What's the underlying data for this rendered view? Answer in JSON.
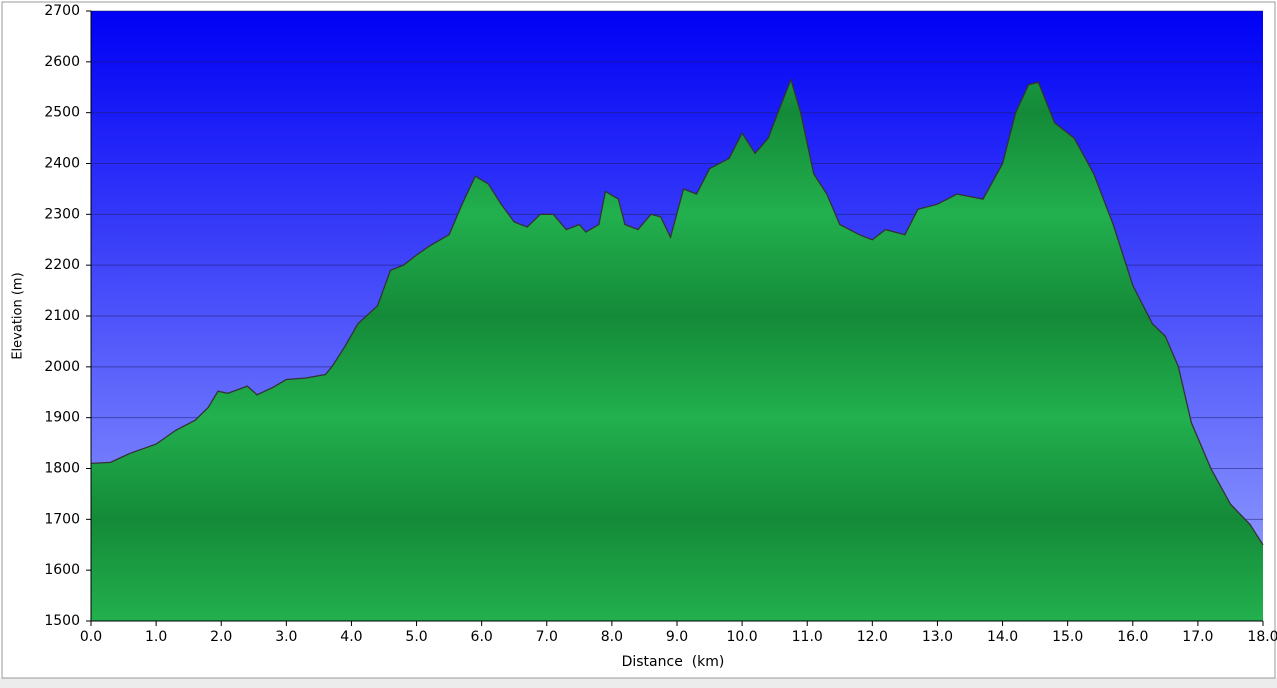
{
  "chart_data": {
    "type": "area",
    "x_label": "Distance  (km)",
    "y_label": "Elevation (m)",
    "x": [
      0.0,
      0.3,
      0.6,
      1.0,
      1.3,
      1.6,
      1.8,
      1.95,
      2.1,
      2.4,
      2.55,
      2.8,
      3.0,
      3.3,
      3.6,
      3.7,
      3.9,
      4.1,
      4.4,
      4.6,
      4.8,
      5.0,
      5.2,
      5.5,
      5.7,
      5.9,
      6.1,
      6.3,
      6.5,
      6.7,
      6.9,
      7.1,
      7.3,
      7.5,
      7.6,
      7.8,
      7.9,
      8.1,
      8.2,
      8.4,
      8.6,
      8.75,
      8.9,
      9.1,
      9.3,
      9.5,
      9.8,
      10.0,
      10.2,
      10.4,
      10.55,
      10.75,
      10.9,
      11.1,
      11.3,
      11.5,
      11.8,
      12.0,
      12.2,
      12.5,
      12.7,
      13.0,
      13.3,
      13.7,
      14.0,
      14.2,
      14.4,
      14.55,
      14.8,
      15.1,
      15.4,
      15.7,
      16.0,
      16.3,
      16.5,
      16.7,
      16.9,
      17.2,
      17.5,
      17.8,
      18.0
    ],
    "values": [
      1810,
      1812,
      1830,
      1848,
      1875,
      1895,
      1920,
      1952,
      1948,
      1962,
      1945,
      1960,
      1975,
      1978,
      1985,
      2000,
      2040,
      2085,
      2120,
      2190,
      2200,
      2220,
      2238,
      2260,
      2320,
      2375,
      2360,
      2320,
      2285,
      2275,
      2300,
      2300,
      2270,
      2280,
      2265,
      2280,
      2345,
      2330,
      2280,
      2270,
      2300,
      2295,
      2255,
      2350,
      2340,
      2390,
      2410,
      2460,
      2420,
      2450,
      2500,
      2565,
      2500,
      2380,
      2340,
      2280,
      2260,
      2250,
      2270,
      2260,
      2310,
      2320,
      2340,
      2330,
      2400,
      2500,
      2555,
      2560,
      2480,
      2450,
      2380,
      2280,
      2160,
      2085,
      2060,
      2000,
      1890,
      1800,
      1730,
      1690,
      1650
    ],
    "color": "#1fa84a",
    "xlim": [
      0,
      18
    ],
    "xticks": [
      {
        "value": 0,
        "label": "0.0"
      },
      {
        "value": 1,
        "label": "1.0"
      },
      {
        "value": 2,
        "label": "2.0"
      },
      {
        "value": 3,
        "label": "3.0"
      },
      {
        "value": 4,
        "label": "4.0"
      },
      {
        "value": 5,
        "label": "5.0"
      },
      {
        "value": 6,
        "label": "6.0"
      },
      {
        "value": 7,
        "label": "7.0"
      },
      {
        "value": 8,
        "label": "8.0"
      },
      {
        "value": 9,
        "label": "9.0"
      },
      {
        "value": 10,
        "label": "10.0"
      },
      {
        "value": 11,
        "label": "11.0"
      },
      {
        "value": 12,
        "label": "12.0"
      },
      {
        "value": 13,
        "label": "13.0"
      },
      {
        "value": 14,
        "label": "14.0"
      },
      {
        "value": 15,
        "label": "15.0"
      },
      {
        "value": 16,
        "label": "16.0"
      },
      {
        "value": 17,
        "label": "17.0"
      },
      {
        "value": 18,
        "label": "18.0"
      }
    ],
    "ylim": [
      1500,
      2700
    ],
    "yticks": [
      1500,
      1600,
      1700,
      1800,
      1900,
      2000,
      2100,
      2200,
      2300,
      2400,
      2500,
      2600,
      2700
    ],
    "grid": true
  }
}
